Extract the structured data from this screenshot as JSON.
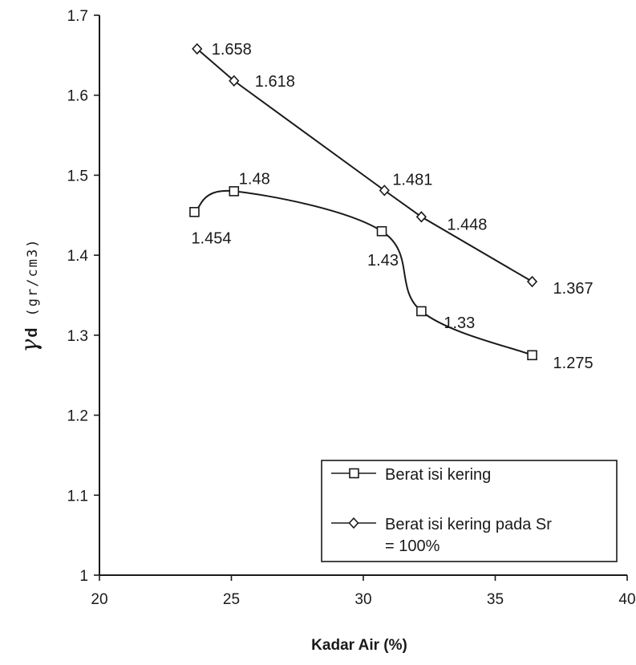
{
  "chart_data": {
    "type": "line",
    "xlabel": "Kadar Air (%)",
    "ylabel": {
      "symbol": "γ",
      "subscript": "d",
      "unit": "(gr/cm3)"
    },
    "xlim": [
      20,
      40
    ],
    "ylim": [
      1,
      1.7
    ],
    "x_ticks": [
      "20",
      "25",
      "30",
      "35",
      "40"
    ],
    "y_ticks": [
      "1",
      "1.1",
      "1.2",
      "1.3",
      "1.4",
      "1.5",
      "1.6",
      "1.7"
    ],
    "grid": false,
    "legend_position": "bottom-right",
    "series": [
      {
        "name": "Berat isi kering",
        "marker": "square",
        "smooth": true,
        "x": [
          23.6,
          25.1,
          30.7,
          32.2,
          36.4
        ],
        "y": [
          1.454,
          1.48,
          1.43,
          1.33,
          1.275
        ],
        "labels": [
          "1.454",
          "1.48",
          "1.43",
          "1.33",
          "1.275"
        ]
      },
      {
        "name": "Berat isi kering pada Sr = 100%",
        "marker": "diamond",
        "smooth": false,
        "x": [
          23.7,
          25.1,
          30.8,
          32.2,
          36.4
        ],
        "y": [
          1.658,
          1.618,
          1.481,
          1.448,
          1.367
        ],
        "labels": [
          "1.658",
          "1.618",
          "1.481",
          "1.448",
          "1.367"
        ]
      }
    ]
  },
  "legend": {
    "items": [
      {
        "label_lines": [
          "Berat isi kering"
        ]
      },
      {
        "label_lines": [
          "Berat isi kering pada Sr",
          "= 100%"
        ]
      }
    ]
  },
  "colors": {
    "line": "#1a1a1a",
    "background": "#ffffff"
  }
}
